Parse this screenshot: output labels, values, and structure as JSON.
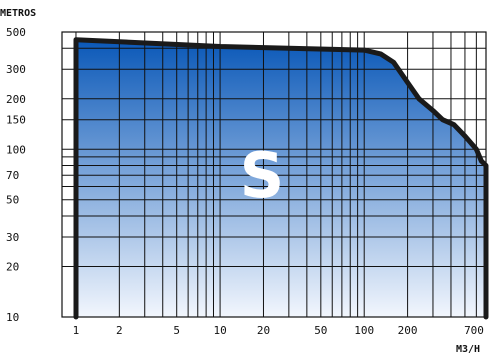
{
  "chart_data": {
    "type": "area",
    "title": "",
    "ylabel": "METROS",
    "xlabel": "M3/H",
    "x_scale": "log",
    "y_scale": "log",
    "xlim": [
      0.8,
      700
    ],
    "ylim": [
      10,
      500
    ],
    "x_tick_labels": [
      1,
      2,
      5,
      10,
      20,
      50,
      100,
      200,
      700
    ],
    "y_tick_labels": [
      500,
      300,
      200,
      150,
      100,
      70,
      50,
      30,
      20,
      10
    ],
    "x_gridlines": [
      1,
      2,
      3,
      4,
      5,
      6,
      7,
      8,
      9,
      10,
      20,
      30,
      40,
      50,
      60,
      70,
      80,
      90,
      100,
      200,
      300,
      400,
      500,
      600,
      700
    ],
    "y_gridlines": [
      10,
      20,
      30,
      40,
      50,
      60,
      70,
      80,
      90,
      100,
      150,
      200,
      300,
      400,
      500
    ],
    "grid": true,
    "region_label": "S",
    "fill_gradient": [
      "#0a58b8",
      "#f2f6fd"
    ],
    "outline_color": "#1a1a1a",
    "envelope": [
      {
        "x": 1,
        "y": 10
      },
      {
        "x": 1,
        "y": 450
      },
      {
        "x": 10,
        "y": 410
      },
      {
        "x": 100,
        "y": 390
      },
      {
        "x": 130,
        "y": 370
      },
      {
        "x": 160,
        "y": 330
      },
      {
        "x": 200,
        "y": 250
      },
      {
        "x": 240,
        "y": 200
      },
      {
        "x": 300,
        "y": 170
      },
      {
        "x": 350,
        "y": 150
      },
      {
        "x": 420,
        "y": 140
      },
      {
        "x": 500,
        "y": 120
      },
      {
        "x": 600,
        "y": 100
      },
      {
        "x": 650,
        "y": 85
      },
      {
        "x": 700,
        "y": 80
      },
      {
        "x": 700,
        "y": 10
      }
    ]
  }
}
